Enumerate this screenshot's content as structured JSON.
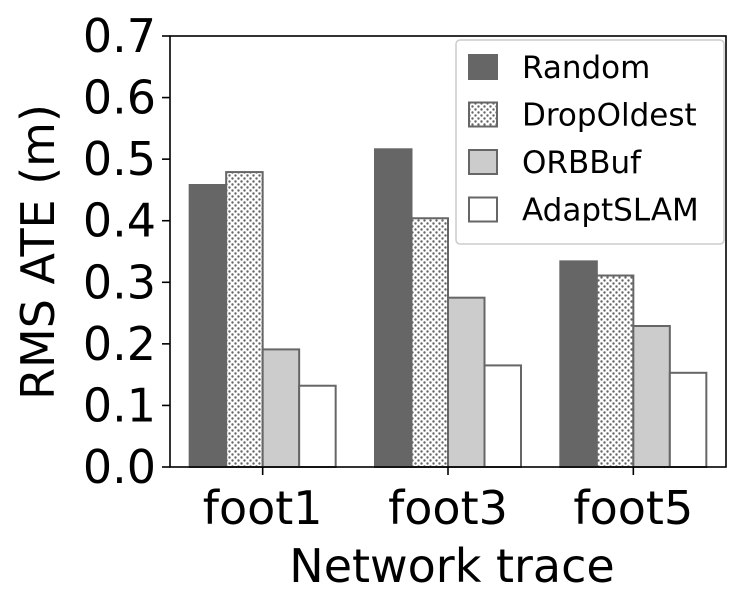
{
  "chart_data": {
    "type": "bar",
    "title": "",
    "xlabel": "Network trace",
    "ylabel": "RMS ATE (m)",
    "ylim": [
      0,
      0.7
    ],
    "yticks": [
      "0.0",
      "0.1",
      "0.2",
      "0.3",
      "0.4",
      "0.5",
      "0.6",
      "0.7"
    ],
    "categories": [
      "foot1",
      "foot3",
      "foot5"
    ],
    "series": [
      {
        "name": "Random",
        "values": [
          0.458,
          0.516,
          0.334
        ],
        "color": "#666666",
        "pattern": "solid"
      },
      {
        "name": "DropOldest",
        "values": [
          0.479,
          0.404,
          0.311
        ],
        "color": "#ffffff",
        "pattern": "dots"
      },
      {
        "name": "ORBBuf",
        "values": [
          0.191,
          0.275,
          0.229
        ],
        "color": "#cccccc",
        "pattern": "solid"
      },
      {
        "name": "AdaptSLAM",
        "values": [
          0.132,
          0.165,
          0.153
        ],
        "color": "#ffffff",
        "pattern": "solid"
      }
    ],
    "legend_position": "top-right",
    "grid": false
  }
}
